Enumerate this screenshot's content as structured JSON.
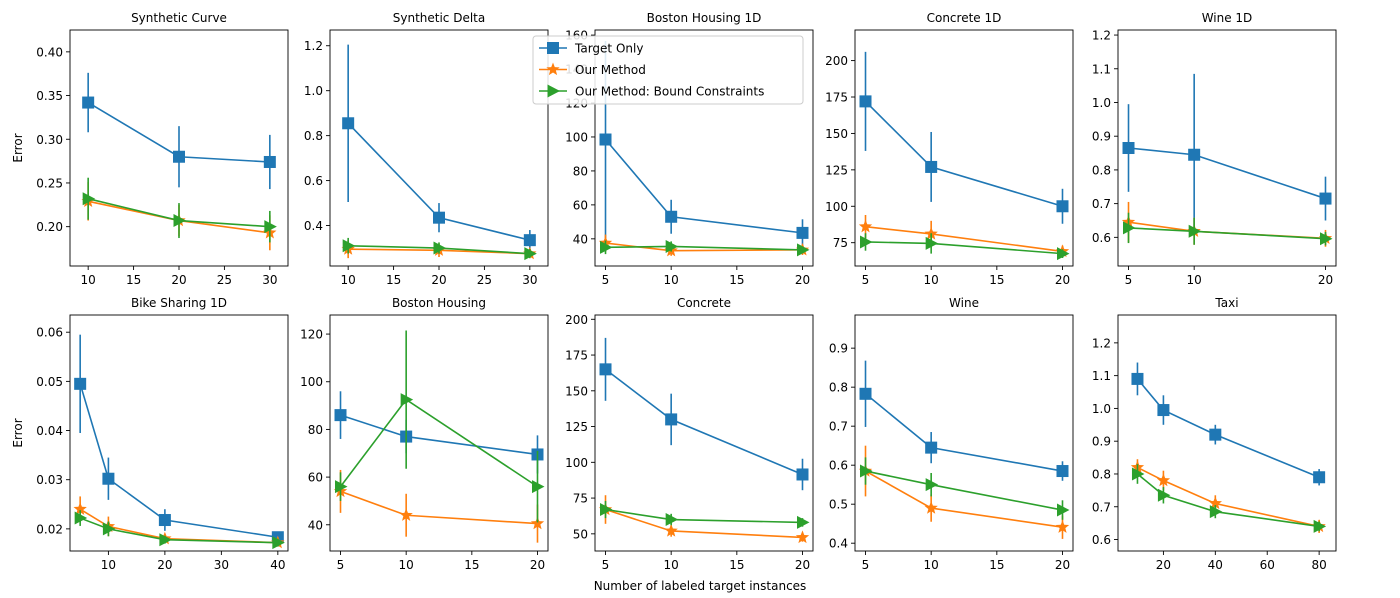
{
  "figure": {
    "xlabel": "Number of labeled target instances",
    "ylabel": "Error"
  },
  "legend": {
    "placement": "top-center",
    "entries": [
      {
        "name": "Target Only",
        "color": "#1f77b4",
        "marker": "square"
      },
      {
        "name": "Our Method",
        "color": "#ff7f0e",
        "marker": "star"
      },
      {
        "name": "Our Method: Bound Constraints",
        "color": "#2ca02c",
        "marker": "triangle-right"
      }
    ]
  },
  "chart_data": [
    {
      "type": "line",
      "title": "Synthetic Curve",
      "ylabel": "Error",
      "xlim": [
        8,
        32
      ],
      "ylim": [
        0.155,
        0.425
      ],
      "xticks": [
        10,
        15,
        20,
        25,
        30
      ],
      "xtick_labels": [
        "10",
        "15",
        "20",
        "25",
        "30"
      ],
      "yticks": [
        0.2,
        0.25,
        0.3,
        0.35,
        0.4
      ],
      "ytick_labels": [
        "0.20",
        "0.25",
        "0.30",
        "0.35",
        "0.40"
      ],
      "x": [
        10,
        20,
        30
      ],
      "series": [
        {
          "name": "Target Only",
          "values": [
            0.342,
            0.28,
            0.274
          ],
          "err": [
            0.034,
            0.035,
            0.031
          ]
        },
        {
          "name": "Our Method",
          "values": [
            0.229,
            0.207,
            0.193
          ],
          "err": [
            0.022,
            0.018,
            0.02
          ]
        },
        {
          "name": "Our Method: Bound Constraints",
          "values": [
            0.232,
            0.207,
            0.2
          ],
          "err": [
            0.024,
            0.02,
            0.018
          ]
        }
      ]
    },
    {
      "type": "line",
      "title": "Synthetic Delta",
      "ylabel": "",
      "xlim": [
        8,
        32
      ],
      "ylim": [
        0.22,
        1.27
      ],
      "xticks": [
        10,
        15,
        20,
        25,
        30
      ],
      "xtick_labels": [
        "10",
        "15",
        "20",
        "25",
        "30"
      ],
      "yticks": [
        0.4,
        0.6,
        0.8,
        1.0,
        1.2
      ],
      "ytick_labels": [
        "0.4",
        "0.6",
        "0.8",
        "1.0",
        "1.2"
      ],
      "x": [
        10,
        20,
        30
      ],
      "series": [
        {
          "name": "Target Only",
          "values": [
            0.855,
            0.435,
            0.335
          ],
          "err": [
            0.35,
            0.065,
            0.045
          ]
        },
        {
          "name": "Our Method",
          "values": [
            0.295,
            0.29,
            0.275
          ],
          "err": [
            0.04,
            0.03,
            0.02
          ]
        },
        {
          "name": "Our Method: Bound Constraints",
          "values": [
            0.31,
            0.3,
            0.275
          ],
          "err": [
            0.035,
            0.025,
            0.02
          ]
        }
      ]
    },
    {
      "type": "line",
      "title": "Boston Housing 1D",
      "ylabel": "",
      "xlim": [
        4.2,
        20.8
      ],
      "ylim": [
        24,
        163
      ],
      "xticks": [
        5,
        10,
        15,
        20
      ],
      "xtick_labels": [
        "5",
        "10",
        "15",
        "20"
      ],
      "yticks": [
        40,
        60,
        80,
        100,
        120,
        140,
        160
      ],
      "ytick_labels": [
        "40",
        "60",
        "80",
        "100",
        "120",
        "140",
        "160"
      ],
      "x": [
        5,
        10,
        20
      ],
      "series": [
        {
          "name": "Target Only",
          "values": [
            98.5,
            53.0,
            43.5
          ],
          "err": [
            58,
            10,
            8
          ]
        },
        {
          "name": "Our Method",
          "values": [
            37.5,
            33.0,
            33.5
          ],
          "err": [
            5,
            3,
            3
          ]
        },
        {
          "name": "Our Method: Bound Constraints",
          "values": [
            35.0,
            35.5,
            33.5
          ],
          "err": [
            4,
            3,
            2
          ]
        }
      ]
    },
    {
      "type": "line",
      "title": "Concrete 1D",
      "ylabel": "",
      "xlim": [
        4.2,
        20.8
      ],
      "ylim": [
        59,
        221
      ],
      "xticks": [
        5,
        10,
        15,
        20
      ],
      "xtick_labels": [
        "5",
        "10",
        "15",
        "20"
      ],
      "yticks": [
        75,
        100,
        125,
        150,
        175,
        200
      ],
      "ytick_labels": [
        "75",
        "100",
        "125",
        "150",
        "175",
        "200"
      ],
      "x": [
        5,
        10,
        20
      ],
      "series": [
        {
          "name": "Target Only",
          "values": [
            172,
            127,
            100
          ],
          "err": [
            34,
            24,
            12
          ]
        },
        {
          "name": "Our Method",
          "values": [
            86,
            81,
            69
          ],
          "err": [
            8,
            9,
            4
          ]
        },
        {
          "name": "Our Method: Bound Constraints",
          "values": [
            75.5,
            74.5,
            67.5
          ],
          "err": [
            6,
            7,
            3
          ]
        }
      ]
    },
    {
      "type": "line",
      "title": "Wine 1D",
      "ylabel": "",
      "xlim": [
        4.2,
        20.8
      ],
      "ylim": [
        0.515,
        1.215
      ],
      "xticks": [
        5,
        10,
        20
      ],
      "xtick_labels": [
        "5",
        "10",
        "20"
      ],
      "yticks": [
        0.6,
        0.7,
        0.8,
        0.9,
        1.0,
        1.1,
        1.2
      ],
      "ytick_labels": [
        "0.6",
        "0.7",
        "0.8",
        "0.9",
        "1.0",
        "1.1",
        "1.2"
      ],
      "x": [
        5,
        10,
        20
      ],
      "series": [
        {
          "name": "Target Only",
          "values": [
            0.865,
            0.845,
            0.715
          ],
          "err": [
            0.13,
            0.24,
            0.065
          ]
        },
        {
          "name": "Our Method",
          "values": [
            0.645,
            0.618,
            0.597
          ],
          "err": [
            0.06,
            0.04,
            0.025
          ]
        },
        {
          "name": "Our Method: Bound Constraints",
          "values": [
            0.628,
            0.618,
            0.596
          ],
          "err": [
            0.045,
            0.04,
            0.02
          ]
        }
      ]
    },
    {
      "type": "line",
      "title": "Bike Sharing 1D",
      "ylabel": "Error",
      "xlim": [
        3.2,
        41.8
      ],
      "ylim": [
        0.0155,
        0.0635
      ],
      "xticks": [
        10,
        20,
        30,
        40
      ],
      "xtick_labels": [
        "10",
        "20",
        "30",
        "40"
      ],
      "yticks": [
        0.02,
        0.03,
        0.04,
        0.05,
        0.06
      ],
      "ytick_labels": [
        "0.02",
        "0.03",
        "0.04",
        "0.05",
        "0.06"
      ],
      "x": [
        5,
        10,
        20,
        40
      ],
      "series": [
        {
          "name": "Target Only",
          "values": [
            0.0495,
            0.0302,
            0.0218,
            0.0183
          ],
          "err": [
            0.01,
            0.0043,
            0.0022,
            0.001
          ]
        },
        {
          "name": "Our Method",
          "values": [
            0.024,
            0.0205,
            0.018,
            0.0172
          ],
          "err": [
            0.0026,
            0.002,
            0.0009,
            0.0008
          ]
        },
        {
          "name": "Our Method: Bound Constraints",
          "values": [
            0.0222,
            0.02,
            0.0178,
            0.0172
          ],
          "err": [
            0.0016,
            0.0015,
            0.0008,
            0.0008
          ]
        }
      ]
    },
    {
      "type": "line",
      "title": "Boston Housing",
      "ylabel": "",
      "xlim": [
        4.2,
        20.8
      ],
      "ylim": [
        29,
        128
      ],
      "xticks": [
        5,
        10,
        15,
        20
      ],
      "xtick_labels": [
        "5",
        "10",
        "15",
        "20"
      ],
      "yticks": [
        40,
        60,
        80,
        100,
        120
      ],
      "ytick_labels": [
        "40",
        "60",
        "80",
        "100",
        "120"
      ],
      "x": [
        5,
        10,
        20
      ],
      "series": [
        {
          "name": "Target Only",
          "values": [
            86,
            77,
            69.5
          ],
          "err": [
            10,
            7,
            8
          ]
        },
        {
          "name": "Our Method",
          "values": [
            54,
            44,
            40.5
          ],
          "err": [
            9,
            9,
            8
          ]
        },
        {
          "name": "Our Method: Bound Constraints",
          "values": [
            56,
            92.5,
            56
          ],
          "err": [
            6,
            29,
            15
          ]
        }
      ]
    },
    {
      "type": "line",
      "title": "Concrete",
      "ylabel": "",
      "xlim": [
        4.2,
        20.8
      ],
      "ylim": [
        38,
        203
      ],
      "xticks": [
        5,
        10,
        15,
        20
      ],
      "xtick_labels": [
        "5",
        "10",
        "15",
        "20"
      ],
      "yticks": [
        50,
        75,
        100,
        125,
        150,
        175,
        200
      ],
      "ytick_labels": [
        "50",
        "75",
        "100",
        "125",
        "150",
        "175",
        "200"
      ],
      "x": [
        5,
        10,
        20
      ],
      "series": [
        {
          "name": "Target Only",
          "values": [
            165,
            130,
            91.5
          ],
          "err": [
            22,
            18,
            11
          ]
        },
        {
          "name": "Our Method",
          "values": [
            67,
            52,
            47.5
          ],
          "err": [
            10,
            4,
            3
          ]
        },
        {
          "name": "Our Method: Bound Constraints",
          "values": [
            67,
            60,
            58
          ],
          "err": [
            6,
            4,
            3
          ]
        }
      ]
    },
    {
      "type": "line",
      "title": "Wine",
      "ylabel": "",
      "xlim": [
        4.2,
        20.8
      ],
      "ylim": [
        0.38,
        0.985
      ],
      "xticks": [
        5,
        10,
        15,
        20
      ],
      "xtick_labels": [
        "5",
        "10",
        "15",
        "20"
      ],
      "yticks": [
        0.4,
        0.5,
        0.6,
        0.7,
        0.8,
        0.9
      ],
      "ytick_labels": [
        "0.4",
        "0.5",
        "0.6",
        "0.7",
        "0.8",
        "0.9"
      ],
      "x": [
        5,
        10,
        20
      ],
      "series": [
        {
          "name": "Target Only",
          "values": [
            0.783,
            0.645,
            0.585
          ],
          "err": [
            0.085,
            0.04,
            0.025
          ]
        },
        {
          "name": "Our Method",
          "values": [
            0.585,
            0.49,
            0.441
          ],
          "err": [
            0.065,
            0.035,
            0.03
          ]
        },
        {
          "name": "Our Method: Bound Constraints",
          "values": [
            0.585,
            0.55,
            0.485
          ],
          "err": [
            0.035,
            0.03,
            0.025
          ]
        }
      ]
    },
    {
      "type": "line",
      "title": "Taxi",
      "ylabel": "",
      "xlim": [
        2.5,
        86.5
      ],
      "ylim": [
        0.565,
        1.285
      ],
      "xticks": [
        20,
        40,
        60,
        80
      ],
      "xtick_labels": [
        "20",
        "40",
        "60",
        "80"
      ],
      "yticks": [
        0.6,
        0.7,
        0.8,
        0.9,
        1.0,
        1.1,
        1.2
      ],
      "ytick_labels": [
        "0.6",
        "0.7",
        "0.8",
        "0.9",
        "1.0",
        "1.1",
        "1.2"
      ],
      "x": [
        10,
        20,
        40,
        80
      ],
      "series": [
        {
          "name": "Target Only",
          "values": [
            1.09,
            0.995,
            0.92,
            0.79
          ],
          "err": [
            0.05,
            0.045,
            0.03,
            0.025
          ]
        },
        {
          "name": "Our Method",
          "values": [
            0.82,
            0.78,
            0.71,
            0.64
          ],
          "err": [
            0.025,
            0.03,
            0.025,
            0.02
          ]
        },
        {
          "name": "Our Method: Bound Constraints",
          "values": [
            0.8,
            0.735,
            0.685,
            0.64
          ],
          "err": [
            0.03,
            0.025,
            0.02,
            0.015
          ]
        }
      ]
    }
  ]
}
